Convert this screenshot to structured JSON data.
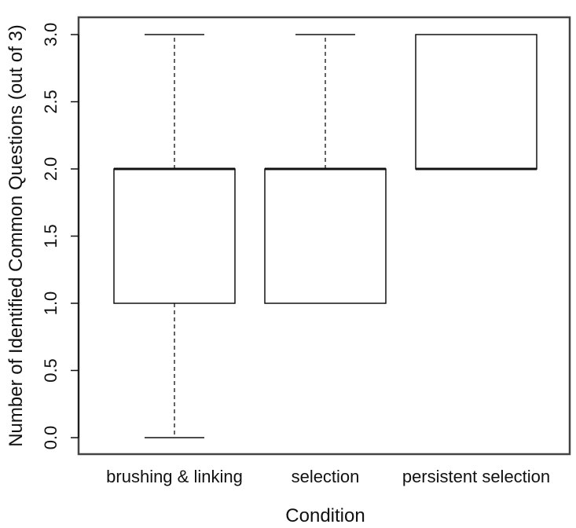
{
  "chart_data": {
    "type": "boxplot",
    "title": "",
    "xlabel": "Condition",
    "ylabel": "Number of Identified Common Questions (out of 3)",
    "ylim": [
      0,
      3
    ],
    "yticks": [
      "0.0",
      "0.5",
      "1.0",
      "1.5",
      "2.0",
      "2.5",
      "3.0"
    ],
    "categories": [
      "brushing & linking",
      "selection",
      "persistent selection"
    ],
    "boxes": [
      {
        "category": "brushing & linking",
        "min": 0,
        "q1": 1,
        "median": 2,
        "q3": 2,
        "max": 3
      },
      {
        "category": "selection",
        "min": 1,
        "q1": 1,
        "median": 2,
        "q3": 2,
        "max": 3
      },
      {
        "category": "persistent selection",
        "min": 2,
        "q1": 2,
        "median": 2,
        "q3": 3,
        "max": 3
      }
    ],
    "grid": false,
    "legend": "none"
  }
}
